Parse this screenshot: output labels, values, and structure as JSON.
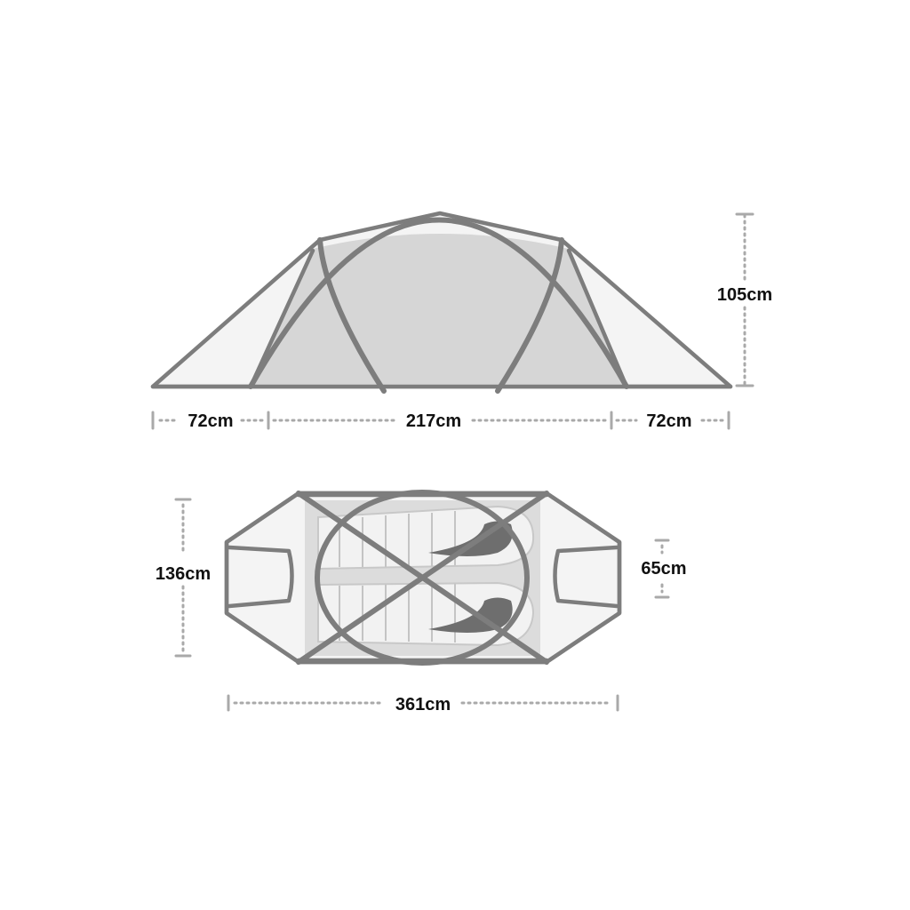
{
  "side_view": {
    "height_label": "105cm",
    "left_vestibule_label": "72cm",
    "inner_length_label": "217cm",
    "right_vestibule_label": "72cm"
  },
  "top_view": {
    "width_label": "136cm",
    "end_width_label": "65cm",
    "total_length_label": "361cm"
  },
  "colors": {
    "frame": "#7d7d7d",
    "inner_fill": "#d6d6d6",
    "fly_fill": "#f4f4f4",
    "dimension_line": "#a9a9a9",
    "text": "#111111"
  }
}
